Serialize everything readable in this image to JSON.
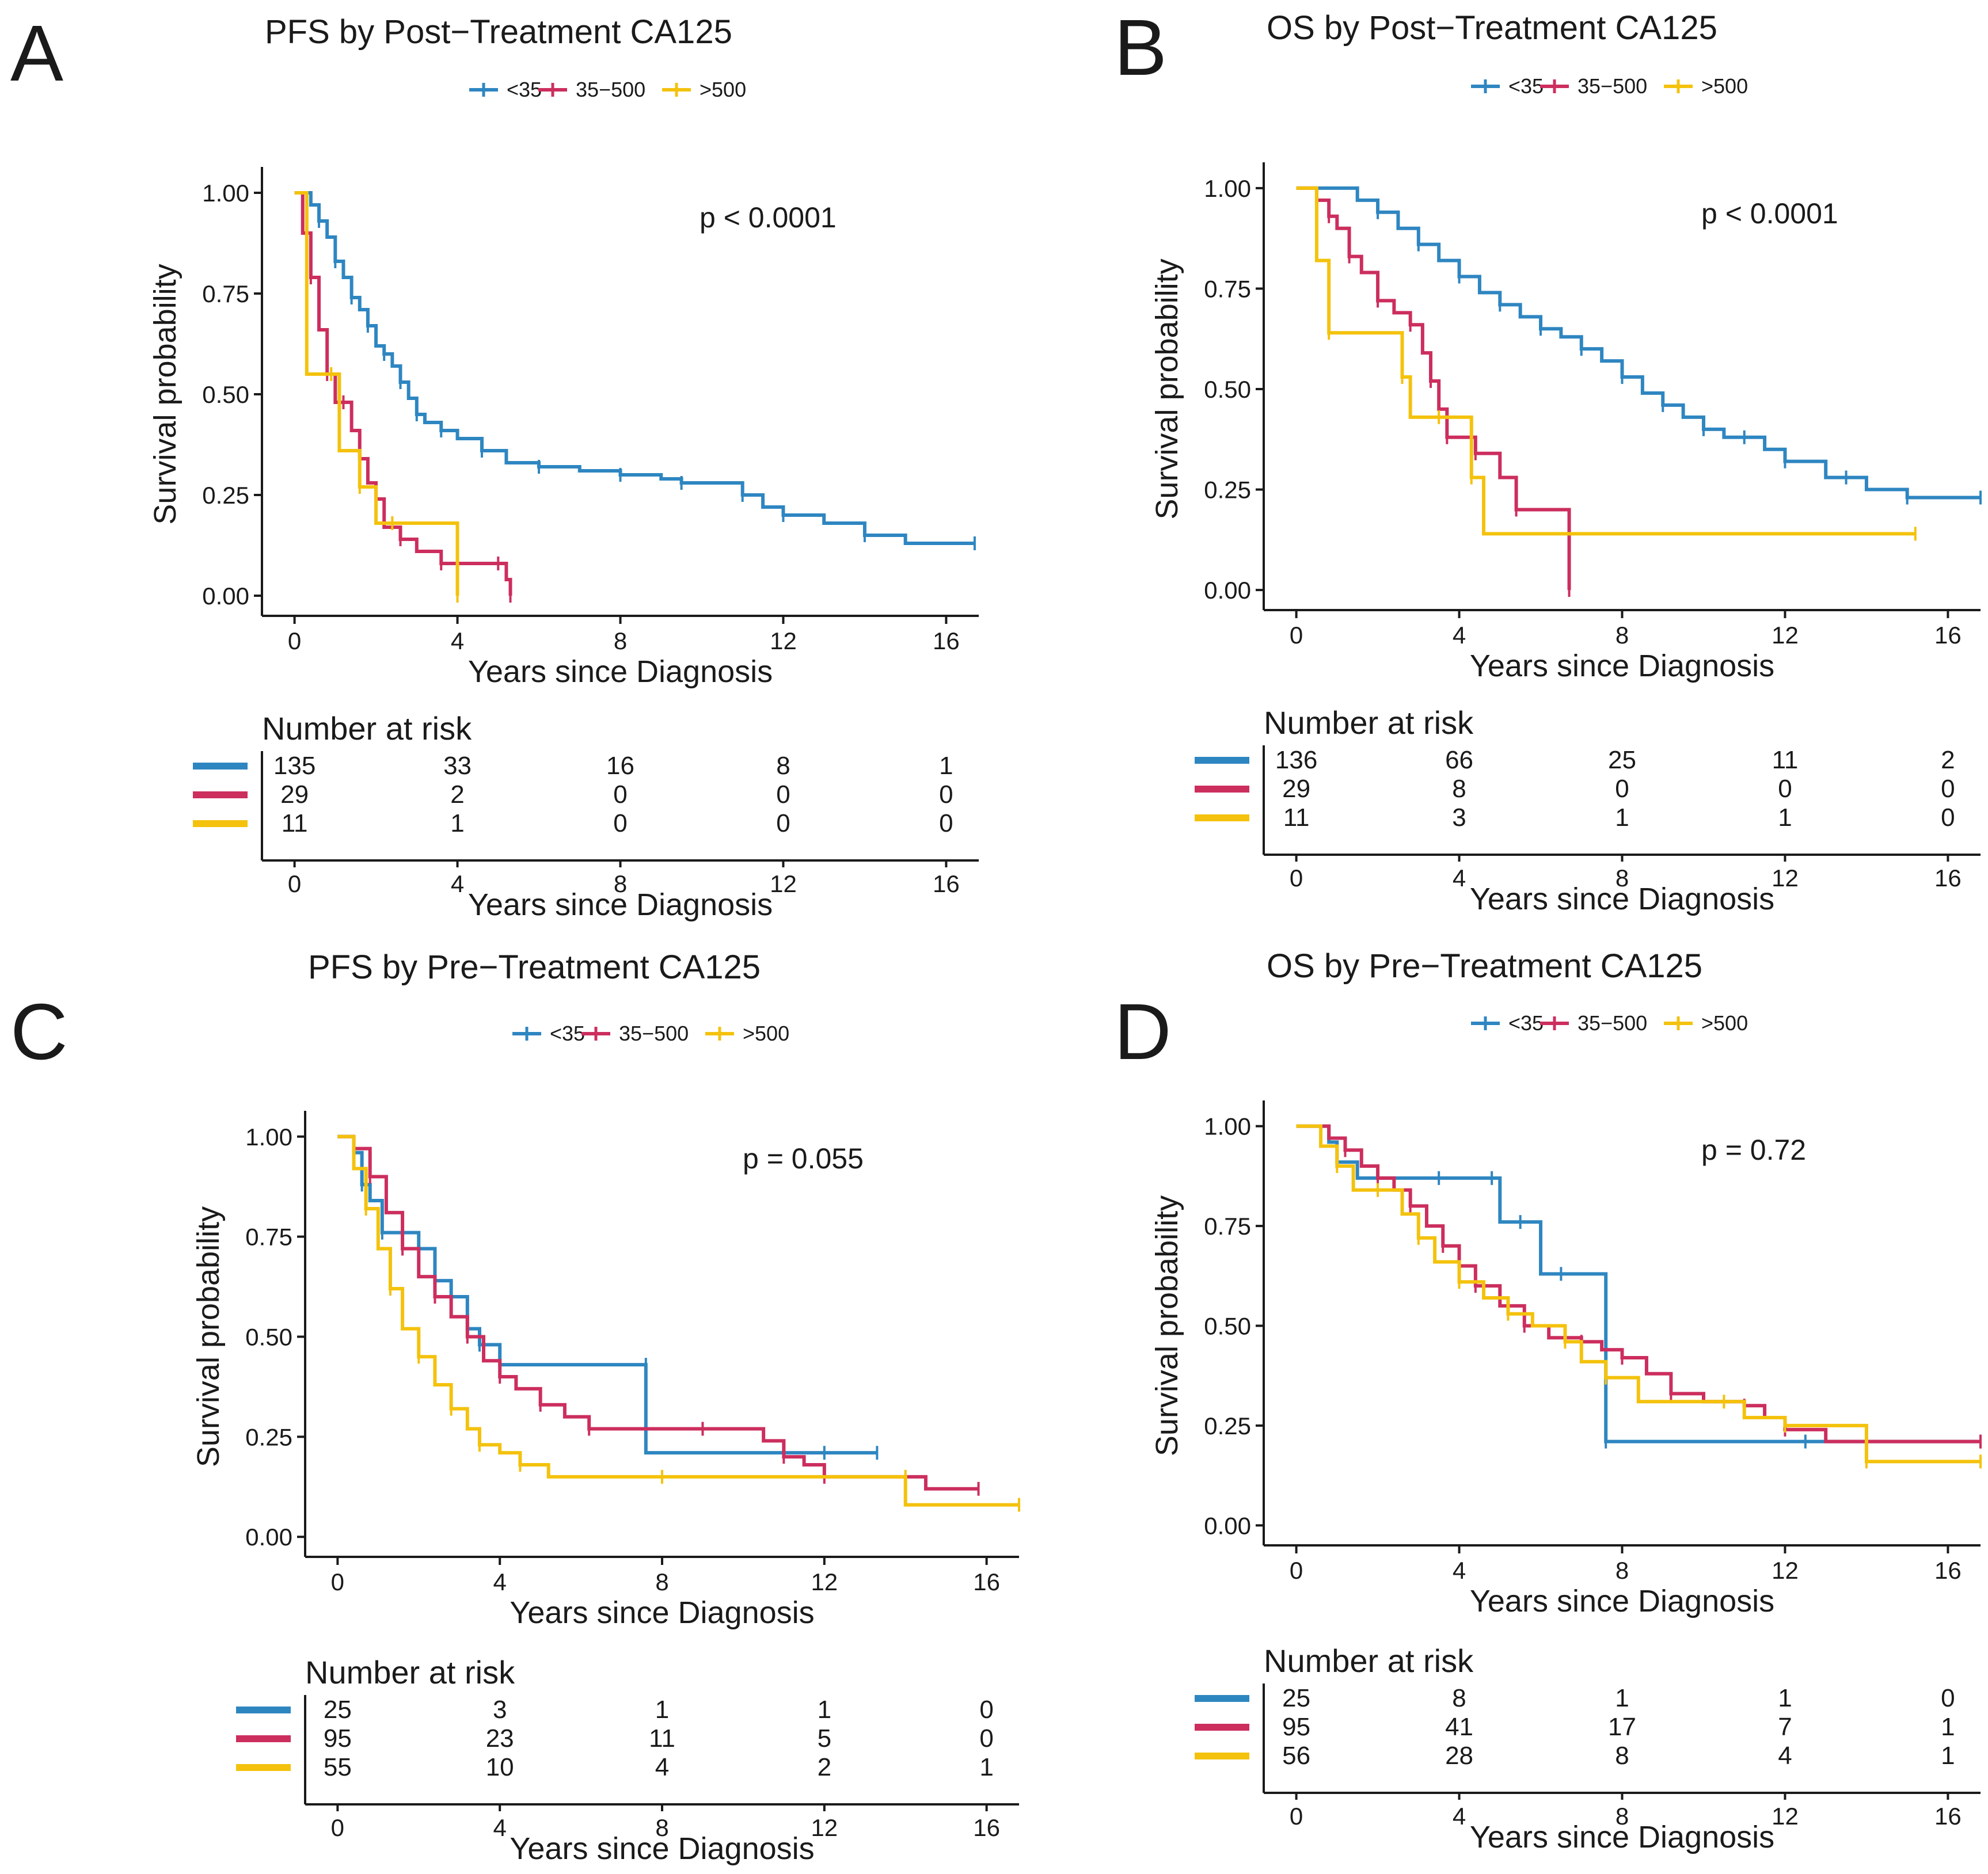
{
  "colors": {
    "lt35": "#2e86c1",
    "m35_500": "#cc2e5e",
    "gt500": "#f4c20d"
  },
  "chart_data": [
    {
      "type": "line",
      "panel": "A",
      "title": "PFS by Post−Treatment CA125",
      "legend": [
        "<35",
        "35−500",
        ">500"
      ],
      "legend_placement": "top-center",
      "xlabel": "Years since Diagnosis",
      "ylabel": "Survival probability",
      "xlim": [
        -0.8,
        16.8
      ],
      "ylim": [
        -0.05,
        1.05
      ],
      "xticks": [
        "0",
        "4",
        "8",
        "12",
        "16"
      ],
      "yticks": [
        "0.00",
        "0.25",
        "0.50",
        "0.75",
        "1.00"
      ],
      "pvalue": "p < 0.0001",
      "series": [
        {
          "name": "<35",
          "color": "#2e86c1",
          "x": [
            0,
            0.4,
            0.6,
            0.8,
            1,
            1.2,
            1.4,
            1.6,
            1.8,
            2,
            2.2,
            2.4,
            2.6,
            2.8,
            3,
            3.2,
            3.6,
            4,
            4.6,
            5.2,
            6,
            7,
            8,
            9,
            9.5,
            10.5,
            11,
            11.5,
            12,
            13,
            14,
            15,
            16.7
          ],
          "y": [
            1,
            0.97,
            0.93,
            0.89,
            0.83,
            0.79,
            0.74,
            0.71,
            0.67,
            0.62,
            0.6,
            0.57,
            0.53,
            0.49,
            0.45,
            0.43,
            0.41,
            0.39,
            0.36,
            0.33,
            0.32,
            0.31,
            0.3,
            0.29,
            0.28,
            0.28,
            0.25,
            0.22,
            0.2,
            0.18,
            0.15,
            0.13,
            0.13
          ]
        },
        {
          "name": "35−500",
          "color": "#cc2e5e",
          "x": [
            0,
            0.2,
            0.4,
            0.6,
            0.8,
            1.0,
            1.2,
            1.4,
            1.6,
            1.8,
            2.0,
            2.2,
            2.6,
            3.0,
            3.6,
            4.2,
            5.0,
            5.2,
            5.3
          ],
          "y": [
            1,
            0.9,
            0.79,
            0.66,
            0.55,
            0.48,
            0.48,
            0.41,
            0.34,
            0.28,
            0.24,
            0.17,
            0.14,
            0.11,
            0.08,
            0.08,
            0.08,
            0.04,
            0.0
          ]
        },
        {
          "name": ">500",
          "color": "#f4c20d",
          "x": [
            0,
            0.3,
            0.9,
            1.1,
            1.6,
            2.0,
            2.4,
            4.0,
            4.0
          ],
          "y": [
            1,
            0.55,
            0.55,
            0.36,
            0.27,
            0.18,
            0.18,
            0.18,
            0.0
          ]
        }
      ],
      "risk_table": {
        "title": "Number at risk",
        "xlabel": "Years since Diagnosis",
        "columns": [
          "0",
          "4",
          "8",
          "12",
          "16"
        ],
        "rows": [
          {
            "series": "<35",
            "values": [
              "135",
              "33",
              "16",
              "8",
              "1"
            ]
          },
          {
            "series": "35−500",
            "values": [
              "29",
              "2",
              "0",
              "0",
              "0"
            ]
          },
          {
            "series": ">500",
            "values": [
              "11",
              "1",
              "0",
              "0",
              "0"
            ]
          }
        ]
      }
    },
    {
      "type": "line",
      "panel": "B",
      "title": "OS by Post−Treatment CA125",
      "legend": [
        "<35",
        "35−500",
        ">500"
      ],
      "legend_placement": "top-center",
      "xlabel": "Years since Diagnosis",
      "ylabel": "Survival probability",
      "xlim": [
        -0.8,
        16.8
      ],
      "ylim": [
        -0.05,
        1.05
      ],
      "xticks": [
        "0",
        "4",
        "8",
        "12",
        "16"
      ],
      "yticks": [
        "0.00",
        "0.25",
        "0.50",
        "0.75",
        "1.00"
      ],
      "pvalue": "p < 0.0001",
      "series": [
        {
          "name": "<35",
          "color": "#2e86c1",
          "x": [
            0,
            1.5,
            2,
            2.5,
            3,
            3.5,
            4,
            4.5,
            5,
            5.5,
            6,
            6.5,
            7,
            7.5,
            8,
            8.5,
            9,
            9.5,
            10,
            10.5,
            11,
            11.5,
            12,
            13,
            13.5,
            14,
            15,
            16.8
          ],
          "y": [
            1,
            0.97,
            0.94,
            0.9,
            0.86,
            0.82,
            0.78,
            0.74,
            0.71,
            0.68,
            0.65,
            0.63,
            0.6,
            0.57,
            0.53,
            0.49,
            0.46,
            0.43,
            0.4,
            0.38,
            0.38,
            0.35,
            0.32,
            0.28,
            0.28,
            0.25,
            0.23,
            0.23
          ]
        },
        {
          "name": "35−500",
          "color": "#cc2e5e",
          "x": [
            0,
            0.5,
            0.8,
            1.0,
            1.3,
            1.6,
            2.0,
            2.4,
            2.8,
            3.1,
            3.3,
            3.5,
            3.7,
            4.0,
            4.4,
            5.0,
            5.4,
            6.4,
            6.7,
            6.7
          ],
          "y": [
            1,
            0.97,
            0.93,
            0.9,
            0.83,
            0.79,
            0.72,
            0.69,
            0.66,
            0.59,
            0.52,
            0.45,
            0.38,
            0.38,
            0.34,
            0.28,
            0.2,
            0.2,
            0.1,
            0.0
          ]
        },
        {
          "name": ">500",
          "color": "#f4c20d",
          "x": [
            0,
            0.5,
            0.8,
            2.3,
            2.6,
            2.8,
            3.5,
            4.0,
            4.3,
            4.6,
            15.2
          ],
          "y": [
            1,
            0.82,
            0.64,
            0.64,
            0.53,
            0.43,
            0.43,
            0.43,
            0.28,
            0.14,
            0.14
          ]
        }
      ],
      "risk_table": {
        "title": "Number at risk",
        "xlabel": "Years since Diagnosis",
        "columns": [
          "0",
          "4",
          "8",
          "12",
          "16"
        ],
        "rows": [
          {
            "series": "<35",
            "values": [
              "136",
              "66",
              "25",
              "11",
              "2"
            ]
          },
          {
            "series": "35−500",
            "values": [
              "29",
              "8",
              "0",
              "0",
              "0"
            ]
          },
          {
            "series": ">500",
            "values": [
              "11",
              "3",
              "1",
              "1",
              "0"
            ]
          }
        ]
      }
    },
    {
      "type": "line",
      "panel": "C",
      "title": "PFS by Pre−Treatment CA125",
      "legend": [
        "<35",
        "35−500",
        ">500"
      ],
      "legend_placement": "top-center",
      "xlabel": "Years since Diagnosis",
      "ylabel": "Survival probability",
      "xlim": [
        -0.8,
        16.8
      ],
      "ylim": [
        -0.05,
        1.05
      ],
      "xticks": [
        "0",
        "4",
        "8",
        "12",
        "16"
      ],
      "yticks": [
        "0.00",
        "0.25",
        "0.50",
        "0.75",
        "1.00"
      ],
      "pvalue": "p = 0.055",
      "series": [
        {
          "name": "<35",
          "color": "#2e86c1",
          "x": [
            0,
            0.4,
            0.6,
            0.8,
            1.1,
            1.8,
            2.0,
            2.4,
            2.8,
            3.2,
            3.5,
            4.0,
            7.6,
            7.6,
            12.0,
            13.3
          ],
          "y": [
            1,
            0.96,
            0.88,
            0.84,
            0.76,
            0.76,
            0.72,
            0.64,
            0.6,
            0.52,
            0.48,
            0.43,
            0.43,
            0.21,
            0.21,
            0.21
          ]
        },
        {
          "name": "35−500",
          "color": "#cc2e5e",
          "x": [
            0,
            0.4,
            0.8,
            1.2,
            1.6,
            2.0,
            2.4,
            2.8,
            3.2,
            3.6,
            4.0,
            4.4,
            5.0,
            5.6,
            6.2,
            8.0,
            9.0,
            10.5,
            11.0,
            11.5,
            12.0,
            14.5,
            15.8
          ],
          "y": [
            1,
            0.97,
            0.9,
            0.81,
            0.72,
            0.65,
            0.6,
            0.55,
            0.5,
            0.44,
            0.4,
            0.37,
            0.33,
            0.3,
            0.27,
            0.27,
            0.27,
            0.24,
            0.2,
            0.18,
            0.15,
            0.12,
            0.12
          ]
        },
        {
          "name": ">500",
          "color": "#f4c20d",
          "x": [
            0,
            0.4,
            0.7,
            1.0,
            1.3,
            1.6,
            2.0,
            2.4,
            2.8,
            3.2,
            3.5,
            4.0,
            4.5,
            5.2,
            8.0,
            12.0,
            14.0,
            14.0,
            16.8
          ],
          "y": [
            1,
            0.92,
            0.82,
            0.72,
            0.62,
            0.52,
            0.45,
            0.38,
            0.32,
            0.27,
            0.23,
            0.21,
            0.18,
            0.15,
            0.15,
            0.15,
            0.15,
            0.08,
            0.08
          ]
        }
      ],
      "risk_table": {
        "title": "Number at risk",
        "xlabel": "Years since Diagnosis",
        "columns": [
          "0",
          "4",
          "8",
          "12",
          "16"
        ],
        "rows": [
          {
            "series": "<35",
            "values": [
              "25",
              "3",
              "1",
              "1",
              "0"
            ]
          },
          {
            "series": "35−500",
            "values": [
              "95",
              "23",
              "11",
              "5",
              "0"
            ]
          },
          {
            "series": ">500",
            "values": [
              "55",
              "10",
              "4",
              "2",
              "1"
            ]
          }
        ]
      }
    },
    {
      "type": "line",
      "panel": "D",
      "title": "OS by Pre−Treatment CA125",
      "legend": [
        "<35",
        "35−500",
        ">500"
      ],
      "legend_placement": "top-center",
      "xlabel": "Years since Diagnosis",
      "ylabel": "Survival probability",
      "xlim": [
        -0.8,
        16.8
      ],
      "ylim": [
        -0.05,
        1.05
      ],
      "xticks": [
        "0",
        "4",
        "8",
        "12",
        "16"
      ],
      "yticks": [
        "0.00",
        "0.25",
        "0.50",
        "0.75",
        "1.00"
      ],
      "pvalue": "p = 0.72",
      "series": [
        {
          "name": "<35",
          "color": "#2e86c1",
          "x": [
            0,
            0.8,
            1.0,
            1.5,
            3.5,
            4.0,
            4.8,
            5.0,
            5.5,
            6.0,
            6.5,
            6.8,
            7.6,
            7.6,
            12.5,
            16.8
          ],
          "y": [
            1,
            0.96,
            0.91,
            0.87,
            0.87,
            0.87,
            0.87,
            0.76,
            0.76,
            0.63,
            0.63,
            0.63,
            0.21,
            0.21,
            0.21,
            0.21
          ]
        },
        {
          "name": "35−500",
          "color": "#cc2e5e",
          "x": [
            0,
            0.8,
            1.2,
            1.6,
            2.0,
            2.4,
            2.8,
            3.2,
            3.6,
            4.0,
            4.4,
            5.0,
            5.6,
            6.2,
            7.0,
            7.5,
            8.0,
            8.6,
            9.2,
            10.0,
            11.0,
            11.5,
            12.0,
            13.0,
            14.0,
            15.0,
            16.8
          ],
          "y": [
            1,
            0.97,
            0.94,
            0.9,
            0.87,
            0.84,
            0.8,
            0.75,
            0.7,
            0.65,
            0.6,
            0.55,
            0.5,
            0.47,
            0.46,
            0.44,
            0.42,
            0.38,
            0.33,
            0.31,
            0.3,
            0.27,
            0.24,
            0.21,
            0.21,
            0.21,
            0.21
          ]
        },
        {
          "name": ">500",
          "color": "#f4c20d",
          "x": [
            0,
            0.6,
            1.0,
            1.4,
            2.0,
            2.6,
            3.0,
            3.4,
            4.0,
            4.6,
            5.2,
            5.8,
            6.6,
            7.0,
            7.6,
            8.4,
            10.5,
            11.0,
            12.0,
            14.0,
            14.0,
            16.8
          ],
          "y": [
            1,
            0.95,
            0.9,
            0.84,
            0.84,
            0.78,
            0.72,
            0.66,
            0.61,
            0.57,
            0.53,
            0.5,
            0.46,
            0.41,
            0.37,
            0.31,
            0.31,
            0.27,
            0.25,
            0.25,
            0.16,
            0.16
          ]
        }
      ],
      "risk_table": {
        "title": "Number at risk",
        "xlabel": "Years since Diagnosis",
        "columns": [
          "0",
          "4",
          "8",
          "12",
          "16"
        ],
        "rows": [
          {
            "series": "<35",
            "values": [
              "25",
              "8",
              "1",
              "1",
              "0"
            ]
          },
          {
            "series": "35−500",
            "values": [
              "95",
              "41",
              "17",
              "7",
              "1"
            ]
          },
          {
            "series": ">500",
            "values": [
              "56",
              "28",
              "8",
              "4",
              "1"
            ]
          }
        ]
      }
    }
  ]
}
